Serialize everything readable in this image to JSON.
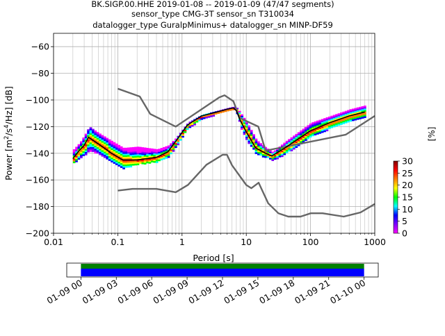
{
  "chart_data": [
    {
      "type": "heatmap",
      "title_lines": [
        "BK.SIGP.00.HHE   2019-01-08 -- 2019-01-09  (47/47 segments)",
        "sensor_type CMG-3T sensor_sn T310034",
        "datalogger_type GuralpMinimus+ datalogger_sn MINP-DF59"
      ],
      "xlabel": "Period [s]",
      "ylabel_text": "Power [m",
      "ylabel_parts": [
        "Power [m",
        "2",
        "/s",
        "4",
        "/Hz] [dB]"
      ],
      "xscale": "log",
      "xlim": [
        0.01,
        1000
      ],
      "ylim": [
        -200,
        -50
      ],
      "x_ticks": [
        0.01,
        0.1,
        1,
        10,
        100,
        1000
      ],
      "x_tick_labels": [
        "0.01",
        "0.1",
        "1",
        "10",
        "100",
        "1000"
      ],
      "y_ticks": [
        -200,
        -180,
        -160,
        -140,
        -120,
        -100,
        -80,
        -60
      ],
      "y_tick_labels": [
        "−200",
        "−180",
        "−160",
        "−140",
        "−120",
        "−100",
        "−80",
        "−60"
      ],
      "grid": true,
      "colorbar": {
        "label": "[%]",
        "range": [
          0,
          30
        ],
        "ticks": [
          0,
          5,
          10,
          15,
          20,
          25,
          30
        ],
        "tick_labels": [
          "0",
          "5",
          "10",
          "15",
          "20",
          "25",
          "30"
        ],
        "colors": [
          "#ff00ff",
          "#7f00ff",
          "#0000ff",
          "#00ffff",
          "#00ff00",
          "#ffff00",
          "#ff8000",
          "#ff0000",
          "#7f0000"
        ]
      },
      "noise_models": [
        {
          "periods": [
            0.1,
            0.22,
            0.32,
            0.8,
            3.8,
            4.6,
            6.3,
            7.9,
            15.4,
            20,
            354.8,
            1000
          ],
          "values": [
            -91.5,
            -97.4,
            -110.5,
            -120,
            -98,
            -96.5,
            -101,
            -113.5,
            -120,
            -138,
            -126,
            -112
          ]
        },
        {
          "periods": [
            0.1,
            0.17,
            0.4,
            0.8,
            1.24,
            2.4,
            4.3,
            5,
            6,
            10,
            12,
            15.6,
            21.9,
            31.6,
            45,
            70,
            101,
            154,
            328,
            600,
            1000
          ],
          "values": [
            -168,
            -166.7,
            -166.7,
            -169.2,
            -163.7,
            -148.6,
            -141.1,
            -141.1,
            -149,
            -163.8,
            -166.2,
            -162.1,
            -177.5,
            -185,
            -187.5,
            -187.5,
            -185,
            -185,
            -187.5,
            -184.4,
            -178
          ]
        }
      ],
      "mean_curve": {
        "periods": [
          0.02,
          0.025,
          0.03,
          0.035,
          0.05,
          0.08,
          0.12,
          0.2,
          0.4,
          0.6,
          0.8,
          1.2,
          2,
          3.5,
          5,
          6.3,
          7,
          8,
          10,
          14,
          20,
          25,
          40,
          100,
          200,
          400,
          700
        ],
        "values": [
          -144,
          -138,
          -134,
          -128,
          -133,
          -140,
          -145,
          -145,
          -143,
          -139,
          -131,
          -119,
          -112,
          -109,
          -107,
          -106,
          -108,
          -115,
          -124,
          -136,
          -140,
          -142,
          -136,
          -123,
          -117,
          -112,
          -109
        ]
      },
      "psd_envelope": {
        "periods": [
          0.02,
          0.025,
          0.03,
          0.035,
          0.05,
          0.08,
          0.12,
          0.2,
          0.4,
          0.6,
          0.8,
          1.2,
          2,
          3.5,
          5,
          6.3,
          7,
          8,
          10,
          14,
          20,
          25,
          40,
          100,
          200,
          400,
          700
        ],
        "upper": [
          -137,
          -132,
          -126,
          -120,
          -125,
          -131,
          -136,
          -135,
          -137,
          -134,
          -128,
          -117,
          -111,
          -108,
          -106,
          -105,
          -106,
          -110,
          -117,
          -130,
          -136,
          -139,
          -131,
          -117,
          -112,
          -107,
          -104
        ],
        "lower": [
          -147,
          -143,
          -141,
          -138,
          -140,
          -147,
          -151,
          -148,
          -146,
          -142,
          -134,
          -121,
          -114,
          -110,
          -108,
          -107,
          -110,
          -120,
          -131,
          -140,
          -143,
          -145,
          -140,
          -127,
          -121,
          -116,
          -112
        ]
      }
    },
    {
      "type": "timeline",
      "x_tick_labels": [
        "01-09 00",
        "01-09 03",
        "01-09 06",
        "01-09 09",
        "01-09 12",
        "01-09 15",
        "01-09 18",
        "01-09 21",
        "01-10 00"
      ],
      "x_tick_hours": [
        0,
        3,
        6,
        9,
        12,
        15,
        18,
        21,
        24
      ],
      "xlim_hours": [
        -1.2,
        25.2
      ],
      "bars": [
        {
          "start_hour": 0,
          "end_hour": 24,
          "color": "#008000"
        },
        {
          "start_hour": 0,
          "end_hour": 24,
          "color": "#0000ff"
        }
      ]
    }
  ]
}
